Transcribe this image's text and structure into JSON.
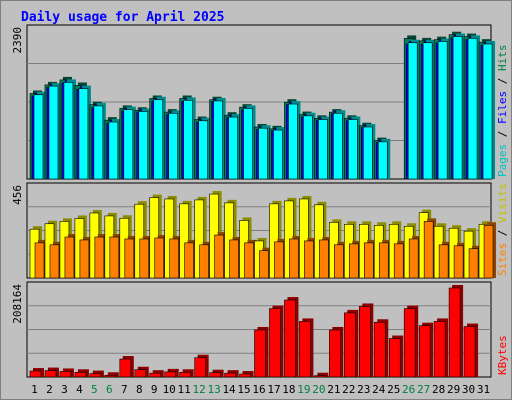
{
  "chart_data": {
    "type": "bar",
    "title": "Daily usage for April 2025",
    "colors": {
      "hits": "#00805c",
      "files": "#0000ff",
      "pages": "#00ffff",
      "visits": "#ff8000",
      "sites": "#ffff00",
      "kbytes": "#ff0000",
      "title": "#0000ff",
      "weekend_day": "#008040",
      "weekday_day": "#000000"
    },
    "days": [
      "1",
      "2",
      "3",
      "4",
      "5",
      "6",
      "7",
      "8",
      "9",
      "10",
      "11",
      "12",
      "13",
      "14",
      "15",
      "16",
      "17",
      "18",
      "19",
      "20",
      "21",
      "22",
      "23",
      "24",
      "25",
      "26",
      "27",
      "28",
      "29",
      "30",
      "31"
    ],
    "weekend_days": [
      "5",
      "6",
      "12",
      "13",
      "19",
      "20",
      "26",
      "27"
    ],
    "panels": [
      {
        "id": "hits_files_pages",
        "max_label": "2390",
        "ylim": [
          0,
          2390
        ],
        "right_labels": [
          {
            "text": "Pages",
            "color": "#00c0c0"
          },
          {
            "text": " / ",
            "color": "#000000"
          },
          {
            "text": "Files",
            "color": "#0000ff"
          },
          {
            "text": " / ",
            "color": "#000000"
          },
          {
            "text": "Hits",
            "color": "#008040"
          }
        ],
        "series": [
          {
            "name": "Hits",
            "color": "#00805c",
            "values": [
              1380,
              1520,
              1600,
              1510,
              1200,
              950,
              1140,
              1110,
              1300,
              1080,
              1300,
              960,
              1280,
              1030,
              1160,
              840,
              810,
              1240,
              1040,
              980,
              1080,
              980,
              860,
              620,
              0,
              2270,
              2230,
              2250,
              2330,
              2300,
              2210
            ]
          },
          {
            "name": "Files",
            "color": "#0000ff",
            "values": [
              1340,
              1480,
              1550,
              1450,
              1150,
              900,
              1100,
              1080,
              1260,
              1040,
              1250,
              920,
              1250,
              990,
              1120,
              800,
              780,
              1200,
              1000,
              950,
              1050,
              940,
              830,
              590,
              0,
              2180,
              2180,
              2200,
              2280,
              2250,
              2160
            ]
          },
          {
            "name": "Pages",
            "color": "#00ffff",
            "values": [
              1360,
              1500,
              1560,
              1460,
              1180,
              920,
              1120,
              1090,
              1280,
              1060,
              1270,
              940,
              1260,
              1000,
              1140,
              820,
              790,
              1210,
              1020,
              960,
              1060,
              960,
              840,
              600,
              0,
              2200,
              2200,
              2220,
              2300,
              2270,
              2180
            ]
          }
        ]
      },
      {
        "id": "visits_sites",
        "max_label": "456",
        "ylim": [
          0,
          456
        ],
        "right_labels": [
          {
            "text": "Sites",
            "color": "#ff8000"
          },
          {
            "text": " / ",
            "color": "#000000"
          },
          {
            "text": "Visits",
            "color": "#c0c000"
          }
        ],
        "series": [
          {
            "name": "Visits",
            "color": "#ffff00",
            "values": [
              250,
              278,
              290,
              305,
              333,
              318,
              306,
              378,
              412,
              405,
              380,
              400,
              430,
              385,
              295,
              190,
              380,
              395,
              405,
              375,
              285,
              275,
              275,
              270,
              275,
              265,
              335,
              265,
              255,
              240,
              275
            ]
          },
          {
            "name": "Sites",
            "color": "#ff8000",
            "values": [
              180,
              170,
              210,
              195,
              210,
              210,
              200,
              200,
              205,
              200,
              180,
              170,
              220,
              195,
              180,
              140,
              185,
              200,
              190,
              195,
              170,
              175,
              180,
              180,
              175,
              200,
              290,
              170,
              165,
              150,
              270
            ]
          }
        ]
      },
      {
        "id": "kbytes",
        "max_label": "208164",
        "ylim": [
          0,
          208164
        ],
        "right_labels": [
          {
            "text": "KBytes",
            "color": "#ff0000"
          }
        ],
        "series": [
          {
            "name": "KBytes",
            "color": "#ff0000",
            "values": [
              14000,
              15000,
              13000,
              11000,
              8000,
              4000,
              42000,
              17000,
              9000,
              12000,
              11000,
              45000,
              10000,
              9000,
              7000,
              110000,
              160000,
              180000,
              130000,
              3000,
              110000,
              150000,
              165000,
              128000,
              90000,
              160000,
              120000,
              130000,
              208164,
              118000,
              0
            ]
          }
        ]
      }
    ]
  }
}
